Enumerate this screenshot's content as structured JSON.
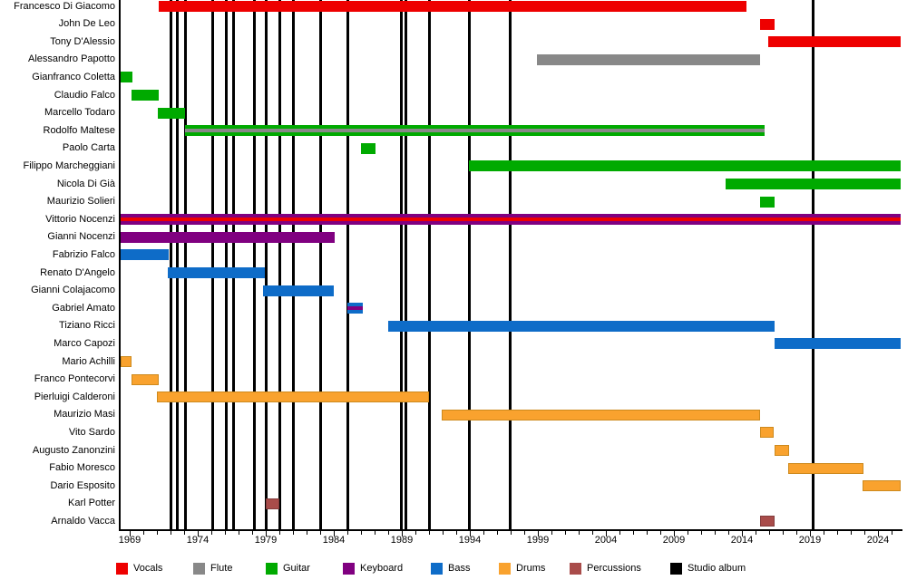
{
  "chart_data": {
    "type": "timeline",
    "description": "Band members timeline with studio album release markers",
    "x_domain": [
      1968.33,
      2025.67
    ],
    "x_ticks_labeled": [
      1969,
      1974,
      1979,
      1984,
      1989,
      1994,
      1999,
      2004,
      2009,
      2014,
      2019,
      2024
    ],
    "x_minor_tick_step": 1,
    "x_minor_tick_range": [
      1969,
      2025
    ],
    "legend_position": "bottom",
    "colors": {
      "vocals": "#ee0000",
      "flute": "#888888",
      "guitar": "#00aa00",
      "keyboard": "#800080",
      "bass": "#0e6cc8",
      "drums": "#f9a22e",
      "percussions": "#a94c4a",
      "studio_album": "#000000",
      "drums_border": "#cd8a1e",
      "percussions_border": "#833c3c"
    },
    "legend": [
      {
        "label": "Vocals",
        "role": "vocals"
      },
      {
        "label": "Flute",
        "role": "flute"
      },
      {
        "label": "Guitar",
        "role": "guitar"
      },
      {
        "label": "Keyboard",
        "role": "keyboard"
      },
      {
        "label": "Bass",
        "role": "bass"
      },
      {
        "label": "Drums",
        "role": "drums"
      },
      {
        "label": "Percussions",
        "role": "percussions"
      },
      {
        "label": "Studio album",
        "role": "studio_album"
      }
    ],
    "studio_album_years": [
      1972.05,
      1972.5,
      1973.1,
      1975.1,
      1976.1,
      1976.6,
      1978.15,
      1979.05,
      1980.05,
      1981.05,
      1983.0,
      1985.0,
      1988.95,
      1989.3,
      1991.0,
      1993.95,
      1996.95,
      2019.25
    ],
    "members": [
      {
        "name": "Francesco Di Giacomo",
        "role": "vocals",
        "start": 1971.1,
        "end": 2014.3
      },
      {
        "name": "John De Leo",
        "role": "vocals",
        "start": 2015.3,
        "end": 2016.4
      },
      {
        "name": "Tony D'Alessio",
        "role": "vocals",
        "start": 2015.9,
        "end": 2025.67
      },
      {
        "name": "Alessandro Papotto",
        "role": "flute",
        "start": 1998.9,
        "end": 2015.35
      },
      {
        "name": "Gianfranco Coletta",
        "role": "guitar",
        "start": 1968.33,
        "end": 1969.2
      },
      {
        "name": "Claudio Falco",
        "role": "guitar",
        "start": 1969.1,
        "end": 1971.15
      },
      {
        "name": "Marcello Todaro",
        "role": "guitar",
        "start": 1971.05,
        "end": 1973.05
      },
      {
        "name": "Rodolfo Maltese",
        "role": "guitar",
        "stripe": "flute",
        "start": 1973.05,
        "end": 2015.65
      },
      {
        "name": "Paolo Carta",
        "role": "guitar",
        "start": 1986.0,
        "end": 1987.05
      },
      {
        "name": "Filippo Marcheggiani",
        "role": "guitar",
        "start": 1993.95,
        "end": 2025.67
      },
      {
        "name": "Nicola Di Già",
        "role": "guitar",
        "start": 2012.8,
        "end": 2025.67
      },
      {
        "name": "Maurizio Solieri",
        "role": "guitar",
        "start": 2015.35,
        "end": 2016.4
      },
      {
        "name": "Vittorio Nocenzi",
        "role": "keyboard",
        "stripe": "vocals",
        "start": 1968.33,
        "end": 2025.67
      },
      {
        "name": "Gianni Nocenzi",
        "role": "keyboard",
        "start": 1968.33,
        "end": 1984.05
      },
      {
        "name": "Fabrizio Falco",
        "role": "bass",
        "start": 1968.33,
        "end": 1971.9
      },
      {
        "name": "Renato D'Angelo",
        "role": "bass",
        "start": 1971.8,
        "end": 1978.9
      },
      {
        "name": "Gianni Colajacomo",
        "role": "bass",
        "start": 1978.8,
        "end": 1984.0
      },
      {
        "name": "Gabriel Amato",
        "role": "bass",
        "stripe": "keyboard",
        "start": 1985.0,
        "end": 1986.1
      },
      {
        "name": "Tiziano Ricci",
        "role": "bass",
        "start": 1988.0,
        "end": 2016.4
      },
      {
        "name": "Marco Capozi",
        "role": "bass",
        "start": 2016.4,
        "end": 2025.67
      },
      {
        "name": "Mario Achilli",
        "role": "drums",
        "start": 1968.33,
        "end": 1969.15
      },
      {
        "name": "Franco Pontecorvi",
        "role": "drums",
        "start": 1969.1,
        "end": 1971.1
      },
      {
        "name": "Pierluigi Calderoni",
        "role": "drums",
        "start": 1971.0,
        "end": 1991.0
      },
      {
        "name": "Maurizio Masi",
        "role": "drums",
        "start": 1991.95,
        "end": 2015.35
      },
      {
        "name": "Vito Sardo",
        "role": "drums",
        "start": 2015.35,
        "end": 2016.35
      },
      {
        "name": "Augusto Zanonzini",
        "role": "drums",
        "start": 2016.4,
        "end": 2017.45
      },
      {
        "name": "Fabio Moresco",
        "role": "drums",
        "start": 2017.4,
        "end": 2022.9
      },
      {
        "name": "Dario Esposito",
        "role": "drums",
        "start": 2022.85,
        "end": 2025.67
      },
      {
        "name": "Karl Potter",
        "role": "percussions",
        "start": 1979.0,
        "end": 1980.0
      },
      {
        "name": "Arnaldo Vacca",
        "role": "percussions",
        "start": 2015.3,
        "end": 2016.4
      }
    ]
  }
}
